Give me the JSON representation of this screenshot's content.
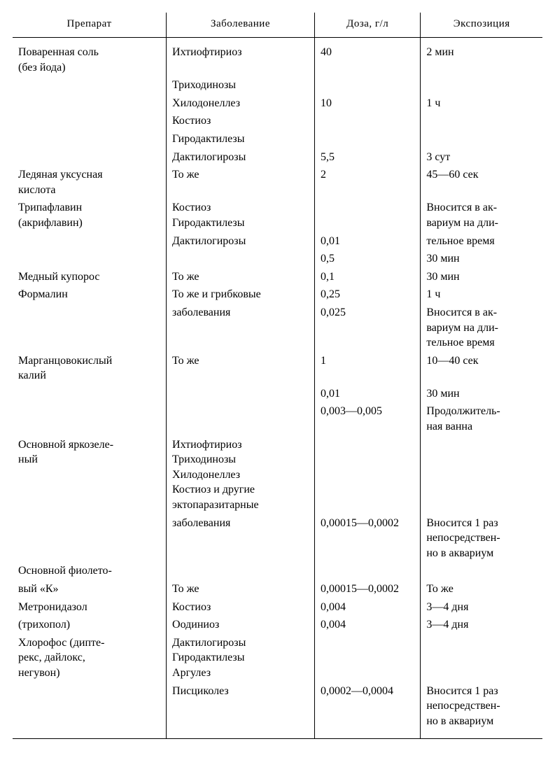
{
  "table": {
    "headers": [
      "Препарат",
      "Заболевание",
      "Доза, г/л",
      "Экспозиция"
    ],
    "background_color": "#ffffff",
    "border_color": "#000000",
    "font_family": "Times New Roman",
    "header_fontsize": 15,
    "body_fontsize": 16,
    "column_widths_pct": [
      29,
      28,
      20,
      23
    ],
    "rows": [
      {
        "spacer": true,
        "cells": [
          "Поваренная соль\n(без йода)",
          "Ихтиофтириоз",
          "40",
          "2 мин"
        ]
      },
      {
        "cells": [
          "",
          "Триходинозы",
          "",
          ""
        ]
      },
      {
        "cells": [
          "",
          "Хилодонеллез",
          "10",
          "1 ч"
        ]
      },
      {
        "cells": [
          "",
          "Костиоз",
          "",
          ""
        ]
      },
      {
        "cells": [
          "",
          "Гиродактилезы",
          "",
          ""
        ]
      },
      {
        "cells": [
          "",
          "Дактилогирозы",
          "5,5",
          "3 сут"
        ]
      },
      {
        "cells": [
          "Ледяная уксусная\nкислота",
          "То же",
          "2",
          "45—60 сек"
        ]
      },
      {
        "cells": [
          "Трипафлавин\n(акрифлавин)",
          "Костиоз\nГиродактилезы",
          "",
          "Вносится в ак-\nвариум на дли-"
        ]
      },
      {
        "cells": [
          "",
          "Дактилогирозы",
          "0,01",
          "тельное   время"
        ]
      },
      {
        "cells": [
          "",
          "",
          "0,5",
          "30 мин"
        ]
      },
      {
        "cells": [
          "Медный купорос",
          "То же",
          "0,1",
          "30 мин"
        ]
      },
      {
        "cells": [
          "Формалин",
          "То же и грибковые",
          "0,25",
          "1 ч"
        ]
      },
      {
        "cells": [
          "",
          "заболевания",
          "0,025",
          "Вносится в ак-\nвариум на дли-\nтельное   время"
        ]
      },
      {
        "cells": [
          "Марганцовокислый\nкалий",
          "То же",
          "1",
          "10—40 сек"
        ]
      },
      {
        "cells": [
          "",
          "",
          "0,01",
          "30 мин"
        ]
      },
      {
        "cells": [
          "",
          "",
          "0,003—0,005",
          "Продолжитель-\nная ванна"
        ]
      },
      {
        "cells": [
          "Основной яркозеле-\nный",
          "Ихтиофтириоз\nТриходинозы\nХилодонеллез\nКостиоз и другие\nэктопаразитарные",
          "",
          ""
        ]
      },
      {
        "cells": [
          "",
          "заболевания",
          "0,00015—0,0002",
          "Вносится 1 раз\nнепосредствен-\nно в аквариум"
        ]
      },
      {
        "cells": [
          "Основной фиолето-",
          "",
          "",
          ""
        ]
      },
      {
        "cells": [
          "вый «К»",
          "То же",
          "0,00015—0,0002",
          "То же"
        ]
      },
      {
        "cells": [
          "Метронидазол",
          "Костиоз",
          "0,004",
          "3—4 дня"
        ]
      },
      {
        "cells": [
          "(трихопол)",
          "Оодиниоз",
          "0,004",
          "3—4 дня"
        ]
      },
      {
        "cells": [
          "Хлорофос (дипте-\nрекс, дайлокс,\nнегувон)",
          "Дактилогирозы\nГиродактилезы\nАргулез",
          "",
          ""
        ]
      },
      {
        "end": true,
        "cells": [
          "",
          "Писциколез",
          "0,0002—0,0004",
          "Вносится 1 раз\nнепосредствен-\nно  в  аквариум"
        ]
      }
    ]
  }
}
